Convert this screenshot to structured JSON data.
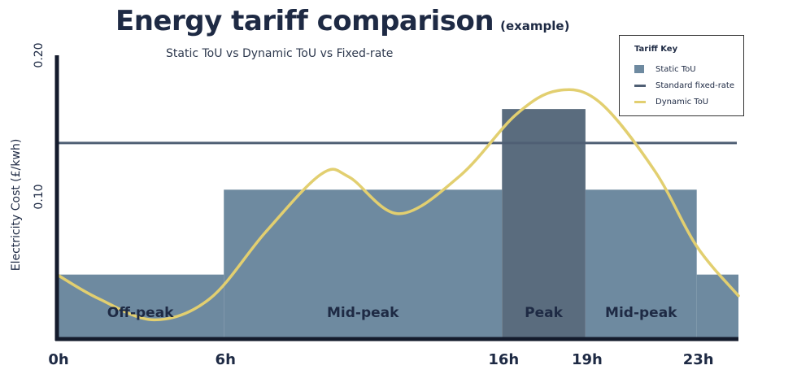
{
  "colors": {
    "axis": "#141b2c",
    "static": "#6e8aa0",
    "peak": "#5a6c7e",
    "fixed": "#4f5f74",
    "dynamic": "#e2cf70",
    "text": "#1e2a44"
  },
  "chart_data": {
    "type": "area",
    "title": "Energy tariff comparison",
    "title_note": "(example)",
    "subtitle": "Static ToU vs Dynamic ToU vs Fixed-rate",
    "ylabel": "Electricity Cost (£/kwh)",
    "ylim": [
      0,
      0.2
    ],
    "xlim": [
      0,
      24.5
    ],
    "y_ticks": [
      {
        "value": 0.1,
        "label": "0.10"
      },
      {
        "value": 0.2,
        "label": "0.20"
      }
    ],
    "x_ticks": [
      {
        "value": 0,
        "label": "0h"
      },
      {
        "value": 6,
        "label": "6h"
      },
      {
        "value": 16,
        "label": "16h"
      },
      {
        "value": 19,
        "label": "19h"
      },
      {
        "value": 23,
        "label": "23h"
      }
    ],
    "static_tou": [
      {
        "start": 0,
        "end": 6,
        "value": 0.045,
        "label": "Off-peak",
        "kind": "normal"
      },
      {
        "start": 6,
        "end": 16,
        "value": 0.105,
        "label": "Mid-peak",
        "kind": "normal"
      },
      {
        "start": 16,
        "end": 19,
        "value": 0.162,
        "label": "Peak",
        "kind": "peak"
      },
      {
        "start": 19,
        "end": 23,
        "value": 0.105,
        "label": "Mid-peak",
        "kind": "normal"
      },
      {
        "start": 23,
        "end": 24.5,
        "value": 0.045,
        "label": "",
        "kind": "normal"
      }
    ],
    "fixed_rate": 0.138,
    "dynamic_tou": [
      {
        "x": 0,
        "y": 0.045
      },
      {
        "x": 1.5,
        "y": 0.028
      },
      {
        "x": 3.5,
        "y": 0.013
      },
      {
        "x": 5.5,
        "y": 0.028
      },
      {
        "x": 7.5,
        "y": 0.075
      },
      {
        "x": 9.5,
        "y": 0.116
      },
      {
        "x": 10.5,
        "y": 0.114
      },
      {
        "x": 12.3,
        "y": 0.088
      },
      {
        "x": 14.5,
        "y": 0.115
      },
      {
        "x": 16.5,
        "y": 0.158
      },
      {
        "x": 18,
        "y": 0.175
      },
      {
        "x": 19.5,
        "y": 0.167
      },
      {
        "x": 21.5,
        "y": 0.118
      },
      {
        "x": 23,
        "y": 0.065
      },
      {
        "x": 24.5,
        "y": 0.03
      }
    ],
    "legend": {
      "title": "Tariff Key",
      "placement": "top-right",
      "items": [
        {
          "label": "Static ToU",
          "type": "box"
        },
        {
          "label": "Standard fixed-rate",
          "type": "line-fixed"
        },
        {
          "label": "Dynamic ToU",
          "type": "line-dynamic"
        }
      ]
    }
  }
}
